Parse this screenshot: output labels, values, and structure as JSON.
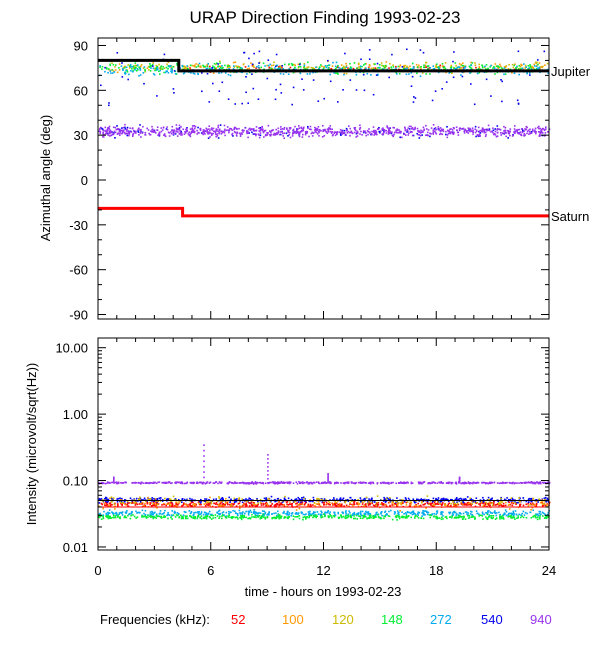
{
  "colors": {
    "f52": "#ff0000",
    "f100": "#ff9900",
    "f120": "#ccbb00",
    "f148": "#00ee33",
    "f272": "#00aaee",
    "f540": "#0000ee",
    "f940": "#9933ee"
  },
  "chart_data": [
    {
      "type": "scatter",
      "panel": "top",
      "title": "URAP Direction Finding  1993-02-23",
      "ylabel": "Azimuthal angle (deg)",
      "xlim": [
        0,
        24
      ],
      "ylim": [
        -93,
        95
      ],
      "yticks": [
        90,
        60,
        30,
        0,
        -30,
        -60,
        -90
      ],
      "ytick_labels": [
        "90",
        "60",
        "30",
        "0",
        "-30",
        "-60",
        "-90"
      ],
      "lines": [
        {
          "name": "Jupiter",
          "label": "Jupiter",
          "x": [
            0,
            4.3,
            4.3,
            24
          ],
          "y": [
            80,
            80,
            73,
            73
          ],
          "color": "#000000"
        },
        {
          "name": "Saturn",
          "label": "Saturn",
          "x": [
            0,
            4.5,
            4.5,
            24
          ],
          "y": [
            -19,
            -19,
            -24,
            -24
          ],
          "color": "#ff0000"
        }
      ],
      "series": [
        {
          "name": "52",
          "key": "f52",
          "center": 75,
          "spread": 3,
          "x_range": [
            4,
            24
          ],
          "count": 60
        },
        {
          "name": "100",
          "key": "f100",
          "center": 76,
          "spread": 5,
          "x_range": [
            0.5,
            24
          ],
          "count": 160
        },
        {
          "name": "120",
          "key": "f120",
          "center": 76,
          "spread": 5,
          "x_range": [
            0.5,
            24
          ],
          "count": 160
        },
        {
          "name": "148",
          "key": "f148",
          "center": 75,
          "spread": 5,
          "x_range": [
            0,
            24
          ],
          "count": 320
        },
        {
          "name": "272",
          "key": "f272",
          "center": 74,
          "spread": 6,
          "x_range": [
            0,
            24
          ],
          "count": 260
        },
        {
          "name": "540",
          "key": "f540",
          "center": 58,
          "spread": 28,
          "x_range": [
            0,
            24
          ],
          "count": 240
        },
        {
          "name": "940",
          "key": "f940",
          "center": 33,
          "spread": 5,
          "x_range": [
            0,
            24
          ],
          "count": 950
        }
      ]
    },
    {
      "type": "scatter",
      "panel": "bottom",
      "ylabel": "Intensity (microvolt/sqrt(Hz))",
      "xlabel": "time - hours on 1993-02-23",
      "xlim": [
        0,
        24
      ],
      "xticks": [
        0,
        6,
        12,
        18,
        24
      ],
      "xtick_labels": [
        "0",
        "6",
        "12",
        "18",
        "24"
      ],
      "yscale": "log",
      "ylim": [
        0.009,
        14
      ],
      "yticks": [
        10,
        1,
        0.1,
        0.01
      ],
      "ytick_labels": [
        "10.00",
        "1.00",
        "0.10",
        "0.01"
      ],
      "series": [
        {
          "name": "940",
          "key": "f940",
          "level": 0.095,
          "jitter": 0.02,
          "count": 600,
          "spikes": [
            [
              5.6,
              0.35
            ],
            [
              9.0,
              0.25
            ],
            [
              12.2,
              0.13
            ],
            [
              19.2,
              0.115
            ],
            [
              0.8,
              0.115
            ]
          ]
        },
        {
          "name": "540",
          "key": "f540",
          "level": 0.052,
          "jitter": 0.06,
          "count": 500,
          "spikes": []
        },
        {
          "name": "52",
          "key": "f52",
          "level": 0.045,
          "jitter": 0.05,
          "count": 450,
          "spikes": []
        },
        {
          "name": "100",
          "key": "f100",
          "level": 0.046,
          "jitter": 0.12,
          "count": 200,
          "spikes": []
        },
        {
          "name": "120",
          "key": "f120",
          "level": 0.05,
          "jitter": 0.1,
          "count": 150,
          "spikes": []
        },
        {
          "name": "272",
          "key": "f272",
          "level": 0.033,
          "jitter": 0.06,
          "count": 500,
          "spikes": []
        },
        {
          "name": "148",
          "key": "f148",
          "level": 0.029,
          "jitter": 0.05,
          "count": 500,
          "spikes": []
        }
      ],
      "reference_lines": [
        {
          "name": "black-reference",
          "y": 0.05,
          "color": "#000000"
        },
        {
          "name": "red-reference",
          "y": 0.04,
          "color": "#ff0000"
        }
      ]
    }
  ],
  "legend": {
    "label": "Frequencies (kHz):",
    "items": [
      {
        "text": "52",
        "key": "f52"
      },
      {
        "text": "100",
        "key": "f100"
      },
      {
        "text": "120",
        "key": "f120"
      },
      {
        "text": "148",
        "key": "f148"
      },
      {
        "text": "272",
        "key": "f272"
      },
      {
        "text": "540",
        "key": "f540"
      },
      {
        "text": "940",
        "key": "f940"
      }
    ]
  }
}
